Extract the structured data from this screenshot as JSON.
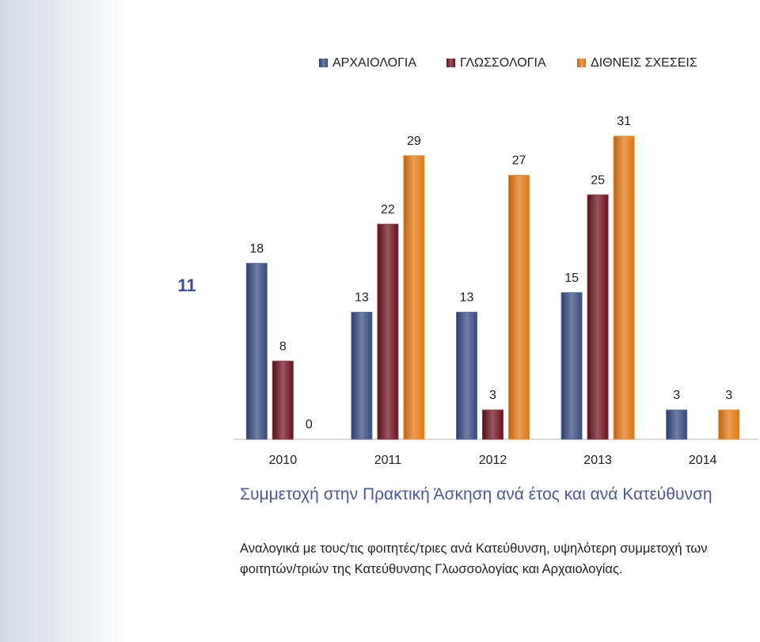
{
  "slide_number": "11",
  "chart_data": {
    "type": "bar",
    "categories": [
      "2010",
      "2011",
      "2012",
      "2013",
      "2014"
    ],
    "series": [
      {
        "name": "ΑΡΧΑΙΟΛΟΓΙΑ",
        "color": "#34477f",
        "values": [
          18,
          13,
          13,
          15,
          3
        ]
      },
      {
        "name": "ΓΛΩΣΣΟΛΟΓΙΑ",
        "color": "#6b0f1c",
        "values": [
          8,
          22,
          3,
          25,
          null
        ]
      },
      {
        "name": "ΔΙΘΝΕΙΣ ΣΧΕΣΕΙΣ",
        "color": "#e0760c",
        "values": [
          0,
          29,
          27,
          31,
          3
        ]
      }
    ],
    "legend": "top"
  },
  "caption": {
    "title": "Συμμετοχή στην Πρακτική Άσκηση ανά έτος και ανά Κατεύθυνση",
    "text": "Αναλογικά με τους/τις φοιτητές/τριες ανά Κατεύθυνση, υψηλότερη συμμετοχή των φοιτητών/τριών της Κατεύθυνσης Γλωσσολογίας και Αρχαιολογίας."
  }
}
